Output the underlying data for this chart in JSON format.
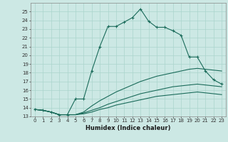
{
  "xlabel": "Humidex (Indice chaleur)",
  "bg_color": "#cce8e4",
  "grid_color": "#aad4cc",
  "line_color": "#1a6b5a",
  "xlim": [
    -0.5,
    23.5
  ],
  "ylim": [
    13,
    26
  ],
  "yticks": [
    13,
    14,
    15,
    16,
    17,
    18,
    19,
    20,
    21,
    22,
    23,
    24,
    25
  ],
  "xticks": [
    0,
    1,
    2,
    3,
    4,
    5,
    6,
    7,
    8,
    9,
    10,
    11,
    12,
    13,
    14,
    15,
    16,
    17,
    18,
    19,
    20,
    21,
    22,
    23
  ],
  "lines": [
    {
      "x": [
        0,
        1,
        2,
        3,
        4,
        5,
        6,
        7,
        8,
        9,
        10,
        11,
        12,
        13,
        14,
        15,
        16,
        17,
        18,
        19,
        20,
        21,
        22,
        23
      ],
      "y": [
        13.8,
        13.7,
        13.5,
        13.2,
        13.2,
        15.0,
        15.0,
        18.2,
        21.0,
        23.3,
        23.3,
        23.8,
        24.3,
        25.3,
        23.9,
        23.2,
        23.2,
        22.8,
        22.3,
        19.8,
        19.8,
        18.2,
        17.2,
        16.7
      ],
      "marker": true
    },
    {
      "x": [
        0,
        1,
        2,
        3,
        4,
        5,
        6,
        7,
        8,
        9,
        10,
        11,
        12,
        13,
        14,
        15,
        16,
        17,
        18,
        19,
        20,
        21,
        22,
        23
      ],
      "y": [
        13.8,
        13.7,
        13.5,
        13.2,
        13.2,
        13.2,
        13.5,
        14.2,
        14.8,
        15.3,
        15.8,
        16.2,
        16.6,
        17.0,
        17.3,
        17.6,
        17.8,
        18.0,
        18.2,
        18.4,
        18.5,
        18.4,
        18.3,
        18.2
      ],
      "marker": false
    },
    {
      "x": [
        0,
        1,
        2,
        3,
        4,
        5,
        6,
        7,
        8,
        9,
        10,
        11,
        12,
        13,
        14,
        15,
        16,
        17,
        18,
        19,
        20,
        21,
        22,
        23
      ],
      "y": [
        13.8,
        13.7,
        13.5,
        13.2,
        13.2,
        13.2,
        13.4,
        13.7,
        14.0,
        14.4,
        14.7,
        15.0,
        15.3,
        15.6,
        15.8,
        16.0,
        16.2,
        16.4,
        16.5,
        16.6,
        16.7,
        16.6,
        16.5,
        16.4
      ],
      "marker": false
    },
    {
      "x": [
        0,
        1,
        2,
        3,
        4,
        5,
        6,
        7,
        8,
        9,
        10,
        11,
        12,
        13,
        14,
        15,
        16,
        17,
        18,
        19,
        20,
        21,
        22,
        23
      ],
      "y": [
        13.8,
        13.7,
        13.5,
        13.2,
        13.2,
        13.2,
        13.3,
        13.5,
        13.8,
        14.0,
        14.3,
        14.5,
        14.7,
        14.9,
        15.1,
        15.3,
        15.4,
        15.5,
        15.6,
        15.7,
        15.8,
        15.7,
        15.6,
        15.5
      ],
      "marker": false
    }
  ]
}
